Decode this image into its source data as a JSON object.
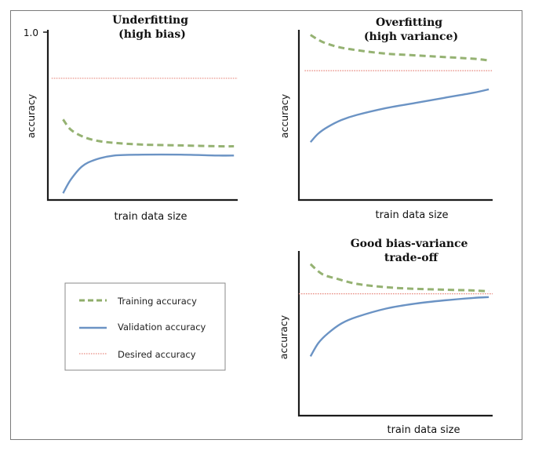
{
  "legend": {
    "position": "bottom-left",
    "entries": [
      {
        "key": "training",
        "label": "Training accuracy",
        "color": "#8fae6a",
        "style": "dashed"
      },
      {
        "key": "validation",
        "label": "Validation accuracy",
        "color": "#6b93c4",
        "style": "solid"
      },
      {
        "key": "desired",
        "label": "Desired accuracy",
        "color": "#e78a80",
        "style": "dotted"
      }
    ]
  },
  "chart_data": [
    {
      "type": "line",
      "title": "Underfitting\n(high bias)",
      "xlabel": "train data size",
      "ylabel": "accuracy",
      "xlim": [
        0,
        1
      ],
      "ylim": [
        0,
        1
      ],
      "y_tick_labels": [
        {
          "value": 1.0,
          "label": "1.0"
        }
      ],
      "grid": false,
      "series": [
        {
          "key": "training",
          "x": [
            0.08,
            0.12,
            0.18,
            0.25,
            0.35,
            0.5,
            0.7,
            0.9,
            0.98
          ],
          "values": [
            0.48,
            0.42,
            0.38,
            0.355,
            0.34,
            0.33,
            0.325,
            0.32,
            0.32
          ]
        },
        {
          "key": "validation",
          "x": [
            0.08,
            0.12,
            0.18,
            0.25,
            0.35,
            0.5,
            0.7,
            0.9,
            0.98
          ],
          "values": [
            0.04,
            0.12,
            0.2,
            0.24,
            0.265,
            0.27,
            0.27,
            0.265,
            0.265
          ]
        },
        {
          "key": "desired",
          "x": [
            0.02,
            1.0
          ],
          "values": [
            0.725,
            0.725
          ]
        }
      ]
    },
    {
      "type": "line",
      "title": "Overfitting\n(high variance)",
      "xlabel": "train data size",
      "ylabel": "accuracy",
      "xlim": [
        0,
        1
      ],
      "ylim": [
        0,
        1
      ],
      "y_tick_labels": [],
      "grid": false,
      "series": [
        {
          "key": "training",
          "x": [
            0.06,
            0.12,
            0.2,
            0.3,
            0.45,
            0.6,
            0.75,
            0.9,
            0.98
          ],
          "values": [
            0.97,
            0.93,
            0.9,
            0.88,
            0.86,
            0.85,
            0.84,
            0.83,
            0.82
          ]
        },
        {
          "key": "validation",
          "x": [
            0.06,
            0.1,
            0.15,
            0.22,
            0.3,
            0.45,
            0.6,
            0.75,
            0.9,
            0.98
          ],
          "values": [
            0.34,
            0.39,
            0.43,
            0.47,
            0.5,
            0.54,
            0.57,
            0.6,
            0.63,
            0.65
          ]
        },
        {
          "key": "desired",
          "x": [
            0.03,
            1.0
          ],
          "values": [
            0.76,
            0.76
          ]
        }
      ]
    },
    {
      "type": "line",
      "title": "Good bias-variance\ntrade-off",
      "xlabel": "train data size",
      "ylabel": "accuracy",
      "xlim": [
        0,
        1
      ],
      "ylim": [
        0,
        1
      ],
      "y_tick_labels": [],
      "grid": false,
      "series": [
        {
          "key": "training",
          "x": [
            0.06,
            0.12,
            0.2,
            0.3,
            0.45,
            0.6,
            0.75,
            0.9,
            0.98
          ],
          "values": [
            0.92,
            0.86,
            0.83,
            0.8,
            0.78,
            0.77,
            0.765,
            0.76,
            0.755
          ]
        },
        {
          "key": "validation",
          "x": [
            0.06,
            0.1,
            0.15,
            0.22,
            0.3,
            0.45,
            0.6,
            0.75,
            0.9,
            0.98
          ],
          "values": [
            0.36,
            0.44,
            0.5,
            0.56,
            0.6,
            0.65,
            0.68,
            0.7,
            0.715,
            0.72
          ]
        },
        {
          "key": "desired",
          "x": [
            0.0,
            1.0
          ],
          "values": [
            0.74,
            0.74
          ]
        }
      ]
    }
  ]
}
